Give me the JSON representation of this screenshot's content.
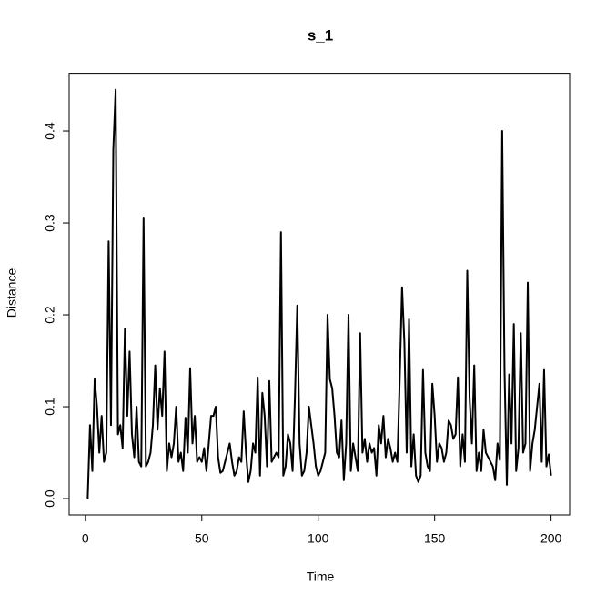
{
  "chart_data": {
    "type": "line",
    "title": "s_1",
    "x_label": "Time",
    "y_label": "Distance",
    "x": [
      1,
      2,
      3,
      4,
      5,
      6,
      7,
      8,
      9,
      10,
      11,
      12,
      13,
      14,
      15,
      16,
      17,
      18,
      19,
      20,
      21,
      22,
      23,
      24,
      25,
      26,
      27,
      28,
      29,
      30,
      31,
      32,
      33,
      34,
      35,
      36,
      37,
      38,
      39,
      40,
      41,
      42,
      43,
      44,
      45,
      46,
      47,
      48,
      49,
      50,
      51,
      52,
      53,
      54,
      55,
      56,
      57,
      58,
      59,
      60,
      61,
      62,
      63,
      64,
      65,
      66,
      67,
      68,
      69,
      70,
      71,
      72,
      73,
      74,
      75,
      76,
      77,
      78,
      79,
      80,
      81,
      82,
      83,
      84,
      85,
      86,
      87,
      88,
      89,
      90,
      91,
      92,
      93,
      94,
      95,
      96,
      97,
      98,
      99,
      100,
      101,
      102,
      103,
      104,
      105,
      106,
      107,
      108,
      109,
      110,
      111,
      112,
      113,
      114,
      115,
      116,
      117,
      118,
      119,
      120,
      121,
      122,
      123,
      124,
      125,
      126,
      127,
      128,
      129,
      130,
      131,
      132,
      133,
      134,
      135,
      136,
      137,
      138,
      139,
      140,
      141,
      142,
      143,
      144,
      145,
      146,
      147,
      148,
      149,
      150,
      151,
      152,
      153,
      154,
      155,
      156,
      157,
      158,
      159,
      160,
      161,
      162,
      163,
      164,
      165,
      166,
      167,
      168,
      169,
      170,
      171,
      172,
      173,
      174,
      175,
      176,
      177,
      178,
      179,
      180,
      181,
      182,
      183,
      184,
      185,
      186,
      187,
      188,
      189,
      190,
      191,
      192,
      193,
      194,
      195,
      196,
      197,
      198,
      199,
      200
    ],
    "series": [
      {
        "color": "#000000",
        "values": [
          0.0,
          0.08,
          0.03,
          0.13,
          0.1,
          0.05,
          0.09,
          0.04,
          0.05,
          0.28,
          0.08,
          0.38,
          0.445,
          0.07,
          0.08,
          0.055,
          0.185,
          0.09,
          0.16,
          0.07,
          0.045,
          0.1,
          0.04,
          0.035,
          0.305,
          0.035,
          0.04,
          0.05,
          0.08,
          0.145,
          0.075,
          0.12,
          0.09,
          0.16,
          0.03,
          0.06,
          0.045,
          0.06,
          0.1,
          0.04,
          0.05,
          0.03,
          0.088,
          0.05,
          0.142,
          0.06,
          0.09,
          0.04,
          0.045,
          0.04,
          0.055,
          0.03,
          0.06,
          0.09,
          0.09,
          0.1,
          0.045,
          0.028,
          0.03,
          0.04,
          0.05,
          0.06,
          0.04,
          0.025,
          0.03,
          0.045,
          0.04,
          0.095,
          0.05,
          0.018,
          0.03,
          0.06,
          0.05,
          0.132,
          0.025,
          0.115,
          0.09,
          0.035,
          0.128,
          0.04,
          0.045,
          0.05,
          0.045,
          0.29,
          0.025,
          0.035,
          0.07,
          0.06,
          0.03,
          0.11,
          0.21,
          0.06,
          0.025,
          0.03,
          0.05,
          0.1,
          0.08,
          0.06,
          0.035,
          0.025,
          0.03,
          0.04,
          0.05,
          0.2,
          0.13,
          0.12,
          0.09,
          0.05,
          0.045,
          0.085,
          0.02,
          0.06,
          0.2,
          0.03,
          0.06,
          0.045,
          0.03,
          0.18,
          0.05,
          0.065,
          0.04,
          0.06,
          0.05,
          0.055,
          0.025,
          0.08,
          0.06,
          0.09,
          0.045,
          0.065,
          0.055,
          0.04,
          0.05,
          0.04,
          0.13,
          0.23,
          0.17,
          0.05,
          0.195,
          0.035,
          0.07,
          0.025,
          0.018,
          0.025,
          0.14,
          0.05,
          0.035,
          0.03,
          0.125,
          0.09,
          0.04,
          0.06,
          0.055,
          0.04,
          0.05,
          0.085,
          0.08,
          0.065,
          0.07,
          0.132,
          0.035,
          0.07,
          0.04,
          0.248,
          0.11,
          0.06,
          0.145,
          0.03,
          0.05,
          0.03,
          0.075,
          0.05,
          0.045,
          0.04,
          0.035,
          0.02,
          0.06,
          0.042,
          0.4,
          0.14,
          0.015,
          0.135,
          0.06,
          0.19,
          0.03,
          0.055,
          0.18,
          0.05,
          0.06,
          0.235,
          0.03,
          0.06,
          0.075,
          0.1,
          0.125,
          0.04,
          0.14,
          0.035,
          0.048,
          0.025
        ]
      }
    ],
    "xlim": [
      -6.96,
      207.96
    ],
    "xticks": [
      0,
      50,
      100,
      150,
      200
    ],
    "ylim": [
      -0.0178,
      0.4628
    ],
    "yticks": [
      {
        "value": 0,
        "label": "0.0"
      },
      0.1,
      0.2,
      0.3,
      0.4
    ]
  }
}
